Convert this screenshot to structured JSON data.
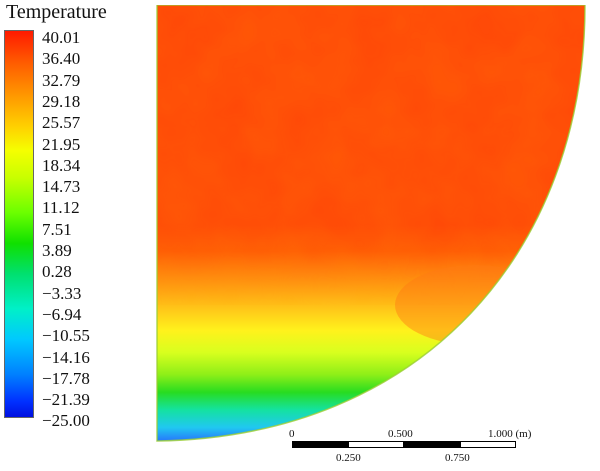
{
  "legend": {
    "title": "Temperature",
    "ticks": [
      "40.01",
      "36.40",
      "32.79",
      "29.18",
      "25.57",
      "21.95",
      "18.34",
      "14.73",
      "11.12",
      "7.51",
      "3.89",
      "0.28",
      "−3.33",
      "−6.94",
      "−10.55",
      "−14.16",
      "−17.78",
      "−21.39",
      "−25.00"
    ],
    "min": -25.0,
    "max": 40.01,
    "colors": [
      "#ff1a00",
      "#ff9a00",
      "#f5ff00",
      "#10e000",
      "#00f0c8",
      "#0080ff",
      "#0010e0"
    ]
  },
  "scale_bar": {
    "top_labels": [
      "0",
      "0.500",
      "1.000 (m)"
    ],
    "bottom_labels": [
      "0.250",
      "0.750"
    ]
  }
}
